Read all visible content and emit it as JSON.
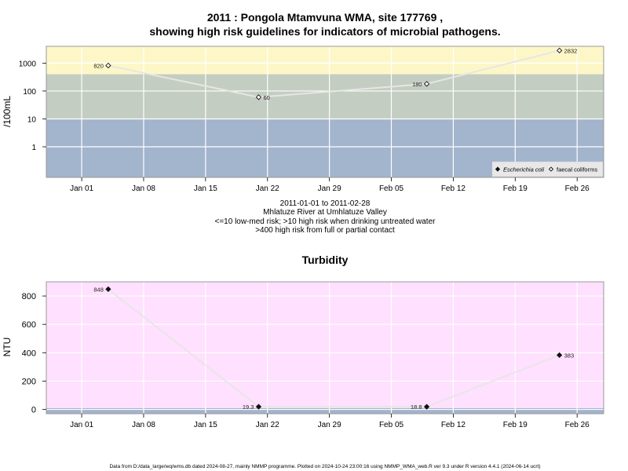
{
  "chart_data": [
    {
      "type": "scatter",
      "title": "2011 : Pongola Mtamvuna WMA, site 177769 ,",
      "subtitle": "showing high risk guidelines for indicators of microbial pathogens.",
      "ylabel": "/100mL",
      "y_scale": "log",
      "ylim": [
        0.08,
        4000
      ],
      "y_ticks": [
        1,
        10,
        100,
        1000
      ],
      "y_tick_labels": [
        "1",
        "10",
        "100",
        "1000"
      ],
      "xlim": [
        "2010-12-28",
        "2011-03-01"
      ],
      "x_ticks": [
        "2011-01-01",
        "2011-01-08",
        "2011-01-15",
        "2011-01-22",
        "2011-01-29",
        "2011-02-05",
        "2011-02-12",
        "2011-02-19",
        "2011-02-26"
      ],
      "x_tick_labels": [
        "Jan 01",
        "Jan 08",
        "Jan 15",
        "Jan 22",
        "Jan 29",
        "Feb 05",
        "Feb 12",
        "Feb 19",
        "Feb 26"
      ],
      "grid": true,
      "bands": [
        {
          "from": 0.08,
          "to": 10,
          "color": "#a3b4cd"
        },
        {
          "from": 10,
          "to": 400,
          "color": "#c4cdc1"
        },
        {
          "from": 400,
          "to": 4000,
          "color": "#fdf7c7"
        }
      ],
      "series": [
        {
          "name": "faecal coliforms",
          "marker": "open-diamond",
          "points": [
            {
              "x": "2011-01-04",
              "y": 820,
              "label": "820",
              "label_side": "left"
            },
            {
              "x": "2011-01-21",
              "y": 60,
              "label": "60",
              "label_side": "right"
            },
            {
              "x": "2011-02-09",
              "y": 180,
              "label": "180",
              "label_side": "left"
            },
            {
              "x": "2011-02-24",
              "y": 2832,
              "label": "2832",
              "label_side": "right"
            }
          ]
        }
      ],
      "legend": {
        "position": "bottom-right",
        "entries": [
          {
            "label": "Escherichia coli",
            "marker": "filled-diamond",
            "italic": true
          },
          {
            "label": "faecal coliforms",
            "marker": "open-diamond",
            "italic": false
          }
        ]
      },
      "caption_lines": [
        "2011-01-01 to 2011-02-28",
        "Mhlatuze River at Umhlatuze Valley",
        "<=10 low-med risk; >10 high risk when drinking untreated water",
        ">400 high risk from full or partial contact"
      ]
    },
    {
      "type": "scatter",
      "title": "Turbidity",
      "ylabel": "NTU",
      "ylim": [
        -30,
        900
      ],
      "y_ticks": [
        0,
        200,
        400,
        600,
        800
      ],
      "y_tick_labels": [
        "0",
        "200",
        "400",
        "600",
        "800"
      ],
      "xlim": [
        "2010-12-28",
        "2011-03-01"
      ],
      "x_ticks": [
        "2011-01-01",
        "2011-01-08",
        "2011-01-15",
        "2011-01-22",
        "2011-01-29",
        "2011-02-05",
        "2011-02-12",
        "2011-02-19",
        "2011-02-26"
      ],
      "x_tick_labels": [
        "Jan 01",
        "Jan 08",
        "Jan 15",
        "Jan 22",
        "Jan 29",
        "Feb 05",
        "Feb 12",
        "Feb 19",
        "Feb 26"
      ],
      "grid": true,
      "bands": [
        {
          "from": -30,
          "to": 10,
          "color": "#a3b4cd"
        },
        {
          "from": 10,
          "to": 900,
          "color": "#ffe0fe"
        }
      ],
      "series": [
        {
          "name": "",
          "marker": "filled-diamond",
          "points": [
            {
              "x": "2011-01-04",
              "y": 848,
              "label": "848",
              "label_side": "left"
            },
            {
              "x": "2011-01-21",
              "y": 19.3,
              "label": "19.3",
              "label_side": "left"
            },
            {
              "x": "2011-02-09",
              "y": 18.8,
              "label": "18.8",
              "label_side": "left"
            },
            {
              "x": "2011-02-24",
              "y": 383,
              "label": "383",
              "label_side": "right"
            }
          ]
        }
      ]
    }
  ],
  "footer": "Data from D:/data_large/wq/wms.db dated 2024-08-27, mainly NMMP programme. Plotted on 2024-10-24 23:00:16 using NMMP_WMA_web.R ver 9.3 under R version 4.4.1 (2024-06-14 ucrt)"
}
